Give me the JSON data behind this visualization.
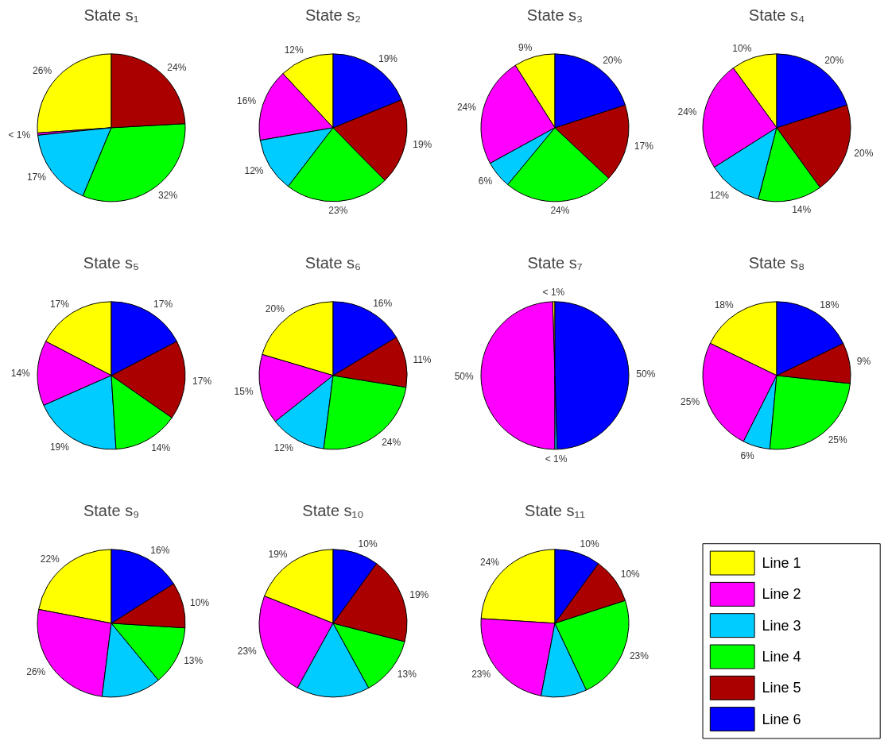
{
  "chart_data": [
    {
      "type": "pie",
      "title": "State s₁",
      "categories": [
        "Line 1",
        "Line 2",
        "Line 3",
        "Line 4",
        "Line 5",
        "Line 6"
      ],
      "values": [
        26,
        0.5,
        17,
        32,
        24,
        0
      ],
      "value_labels": [
        "26%",
        "< 1%",
        "17%",
        "32%",
        "24%",
        null
      ],
      "colors": [
        "#ffff00",
        "#ff00ff",
        "#00ccff",
        "#00ff00",
        "#aa0000",
        "#0000ff"
      ],
      "legend": "bottom right"
    },
    {
      "type": "pie",
      "title": "State s₂",
      "values": [
        12,
        16,
        12,
        23,
        19,
        19
      ],
      "value_labels": [
        "12%",
        "16%",
        "12%",
        "23%",
        "19%",
        "19%"
      ],
      "colors": [
        "#ffff00",
        "#ff00ff",
        "#00ccff",
        "#00ff00",
        "#aa0000",
        "#0000ff"
      ]
    },
    {
      "type": "pie",
      "title": "State s₃",
      "values": [
        9,
        24,
        6,
        24,
        17,
        20
      ],
      "value_labels": [
        "9%",
        "24%",
        "6%",
        "24%",
        "17%",
        "20%"
      ],
      "colors": [
        "#ffff00",
        "#ff00ff",
        "#00ccff",
        "#00ff00",
        "#aa0000",
        "#0000ff"
      ]
    },
    {
      "type": "pie",
      "title": "State s₄",
      "values": [
        10,
        24,
        12,
        14,
        20,
        20
      ],
      "value_labels": [
        "10%",
        "24%",
        "12%",
        "14%",
        "20%",
        "20%"
      ],
      "colors": [
        "#ffff00",
        "#ff00ff",
        "#00ccff",
        "#00ff00",
        "#aa0000",
        "#0000ff"
      ]
    },
    {
      "type": "pie",
      "title": "State s₅",
      "values": [
        17,
        14,
        19,
        14,
        17,
        17
      ],
      "value_labels": [
        "17%",
        "14%",
        "19%",
        "14%",
        "17%",
        "17%"
      ],
      "colors": [
        "#ffff00",
        "#ff00ff",
        "#00ccff",
        "#00ff00",
        "#aa0000",
        "#0000ff"
      ]
    },
    {
      "type": "pie",
      "title": "State s₆",
      "values": [
        20,
        15,
        12,
        24,
        11,
        16
      ],
      "value_labels": [
        "20%",
        "15%",
        "12%",
        "24%",
        "11%",
        "16%"
      ],
      "colors": [
        "#ffff00",
        "#ff00ff",
        "#00ccff",
        "#00ff00",
        "#aa0000",
        "#0000ff"
      ]
    },
    {
      "type": "pie",
      "title": "State s₇",
      "values": [
        0.5,
        50,
        0.5,
        0,
        0,
        50
      ],
      "value_labels": [
        "< 1%",
        "50%",
        "< 1%",
        null,
        null,
        "50%"
      ],
      "colors": [
        "#ffff00",
        "#ff00ff",
        "#00ccff",
        "#00ff00",
        "#aa0000",
        "#0000ff"
      ]
    },
    {
      "type": "pie",
      "title": "State s₈",
      "values": [
        18,
        25,
        6,
        25,
        9,
        18
      ],
      "value_labels": [
        "18%",
        "25%",
        "6%",
        "25%",
        "9%",
        "18%"
      ],
      "colors": [
        "#ffff00",
        "#ff00ff",
        "#00ccff",
        "#00ff00",
        "#aa0000",
        "#0000ff"
      ]
    },
    {
      "type": "pie",
      "title": "State s₉",
      "values": [
        22,
        26,
        13,
        13,
        10,
        16
      ],
      "value_labels": [
        "22%",
        "26%",
        null,
        "13%",
        "10%",
        "16%"
      ],
      "colors": [
        "#ffff00",
        "#ff00ff",
        "#00ccff",
        "#00ff00",
        "#aa0000",
        "#0000ff"
      ]
    },
    {
      "type": "pie",
      "title": "State s₁₀",
      "values": [
        19,
        23,
        16,
        13,
        19,
        10
      ],
      "value_labels": [
        "19%",
        "23%",
        null,
        "13%",
        "19%",
        "10%"
      ],
      "colors": [
        "#ffff00",
        "#ff00ff",
        "#00ccff",
        "#00ff00",
        "#aa0000",
        "#0000ff"
      ]
    },
    {
      "type": "pie",
      "title": "State s₁₁",
      "values": [
        24,
        23,
        10,
        23,
        10,
        10
      ],
      "value_labels": [
        "24%",
        "23%",
        null,
        "23%",
        "10%",
        "10%"
      ],
      "colors": [
        "#ffff00",
        "#ff00ff",
        "#00ccff",
        "#00ff00",
        "#aa0000",
        "#0000ff"
      ]
    }
  ]
}
